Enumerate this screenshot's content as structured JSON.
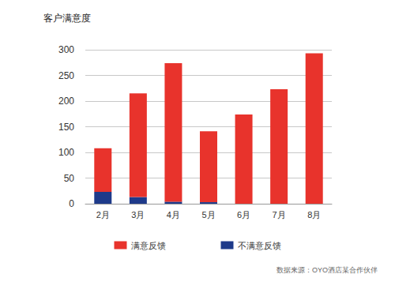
{
  "chart_data": {
    "type": "bar",
    "title": "客户满意度",
    "categories": [
      "2月",
      "3月",
      "4月",
      "5月",
      "6月",
      "7月",
      "8月"
    ],
    "series": [
      {
        "name": "满意反馈",
        "color": "#e8332c",
        "values": [
          85,
          202,
          270,
          138,
          174,
          223,
          293
        ]
      },
      {
        "name": "不满意反馈",
        "color": "#1e3a8a",
        "values": [
          23,
          13,
          4,
          3,
          0,
          0,
          0
        ]
      }
    ],
    "stacked": true,
    "ylim": [
      0,
      300
    ],
    "yticks": [
      0,
      50,
      100,
      150,
      200,
      250,
      300
    ],
    "grid": true,
    "legend": "bottom",
    "annotations": [
      "数据来源：OYO酒店某合作伙伴"
    ]
  }
}
